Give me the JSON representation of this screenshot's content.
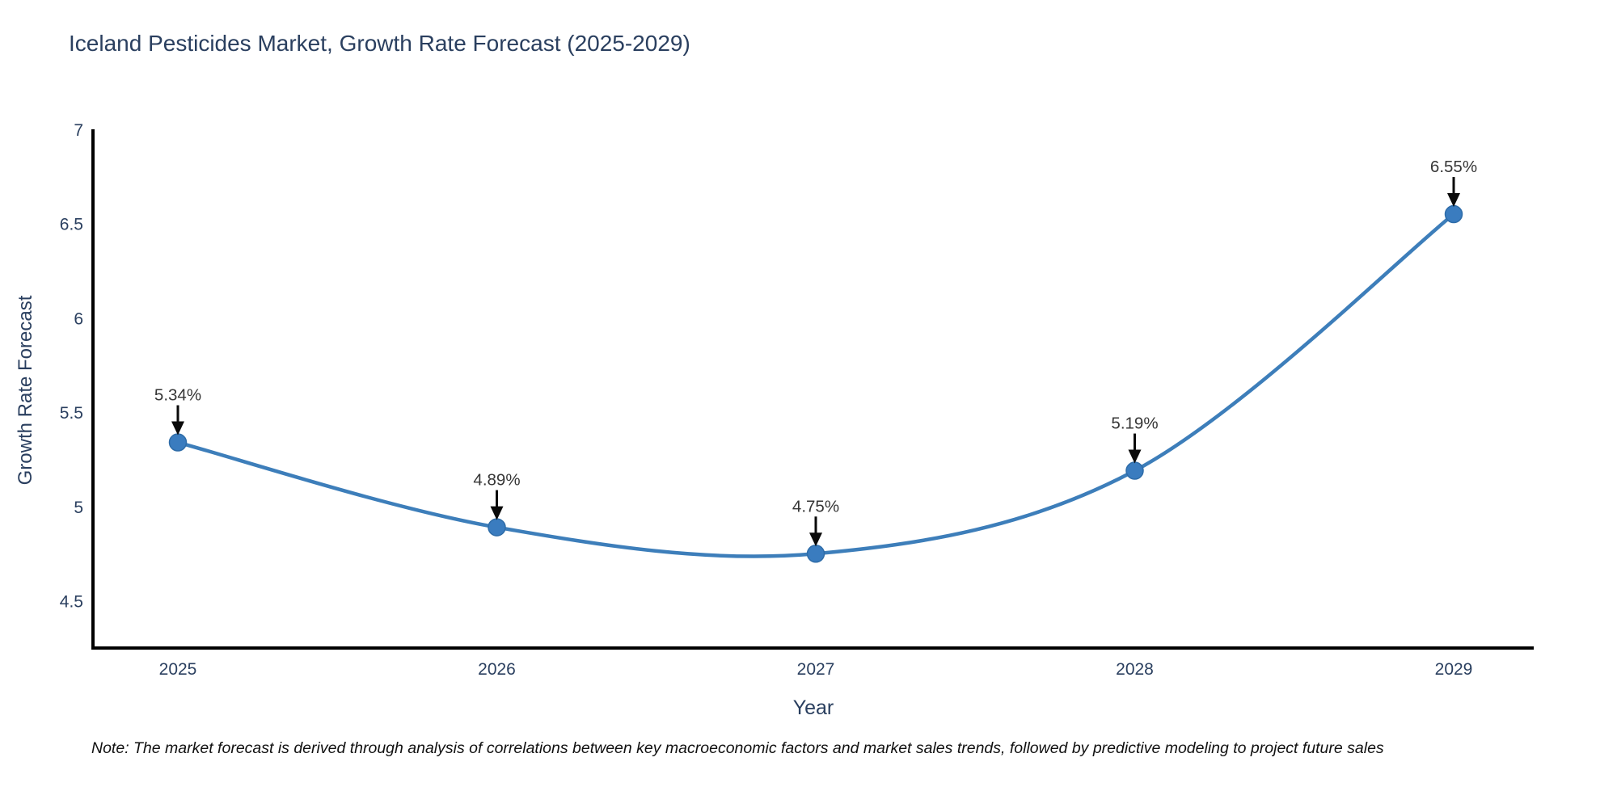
{
  "title": "Iceland Pesticides Market, Growth Rate Forecast (2025-2029)",
  "note": "Note: The market forecast is derived through analysis of correlations between key macroeconomic factors and market sales trends, followed by predictive modeling to project future sales",
  "chart_data": {
    "type": "line",
    "title": "Iceland Pesticides Market, Growth Rate Forecast (2025-2029)",
    "xlabel": "Year",
    "ylabel": "Growth Rate Forecast",
    "categories": [
      "2025",
      "2026",
      "2027",
      "2028",
      "2029"
    ],
    "series": [
      {
        "name": "Growth Rate Forecast",
        "values": [
          5.34,
          4.89,
          4.75,
          5.19,
          6.55
        ],
        "point_labels": [
          "5.34%",
          "4.89%",
          "4.75%",
          "5.19%",
          "6.55%"
        ]
      }
    ],
    "line_shape": "spline",
    "markers": true,
    "annotations_with_arrows": true,
    "yticks": [
      "4.5",
      "5",
      "5.5",
      "6",
      "6.5",
      "7"
    ],
    "ytick_values": [
      4.5,
      5,
      5.5,
      6,
      6.5,
      7
    ],
    "ylim": [
      4.25,
      7.0
    ],
    "grid": false,
    "legend_position": "none",
    "colors": {
      "line": "#3d7eba",
      "marker_fill": "#3a7cbf",
      "marker_edge": "#2e6ca8",
      "axis_line": "#000000",
      "tick_text": "#2a3f5f",
      "annotation_text": "#363636",
      "arrow": "#0a0a0a",
      "background": "#ffffff"
    }
  }
}
